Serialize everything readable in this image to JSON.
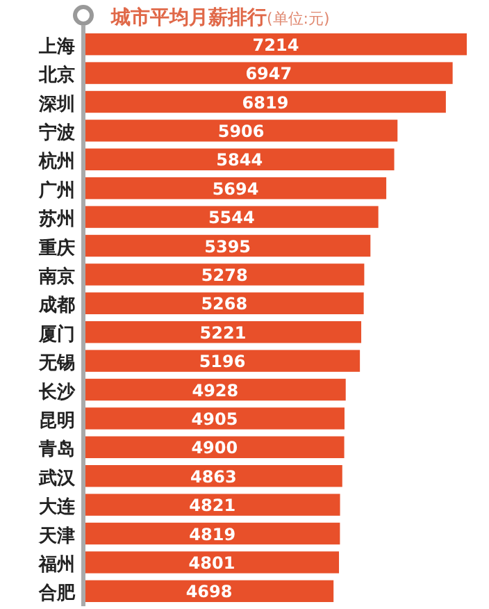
{
  "chart_data": {
    "type": "bar",
    "orientation": "horizontal",
    "title": "城市平均月薪排行",
    "subtitle": "(单位:元)",
    "categories": [
      "上海",
      "北京",
      "深圳",
      "宁波",
      "杭州",
      "广州",
      "苏州",
      "重庆",
      "南京",
      "成都",
      "厦门",
      "无锡",
      "长沙",
      "昆明",
      "青岛",
      "武汉",
      "大连",
      "天津",
      "福州",
      "合肥"
    ],
    "values": [
      7214,
      6947,
      6819,
      5906,
      5844,
      5694,
      5544,
      5395,
      5278,
      5268,
      5221,
      5196,
      4928,
      4905,
      4900,
      4863,
      4821,
      4819,
      4801,
      4698
    ],
    "color": "#e8502a",
    "data_labels": true,
    "relative": false
  }
}
